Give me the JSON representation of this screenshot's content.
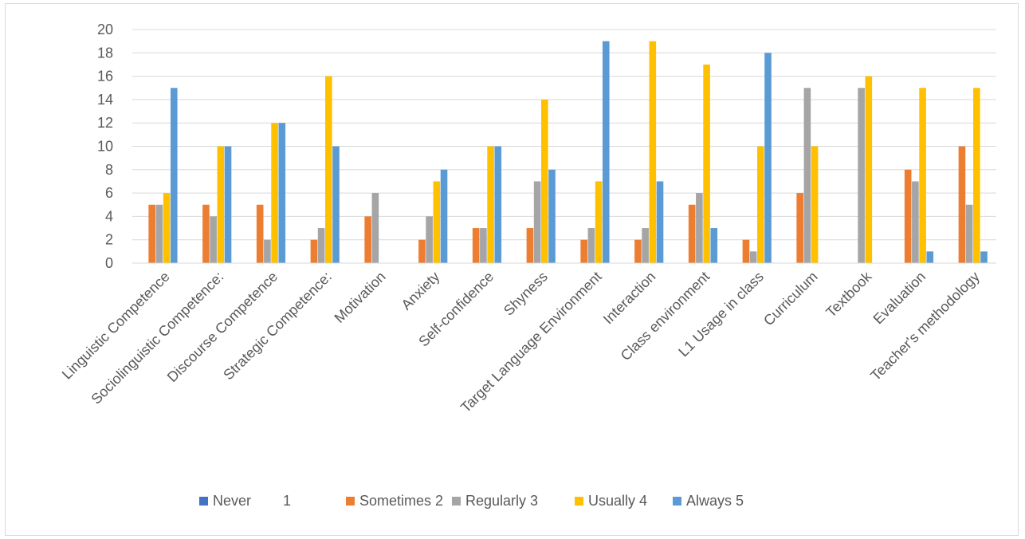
{
  "chart_data": {
    "type": "bar",
    "title": "",
    "xlabel": "",
    "ylabel": "",
    "ylim": [
      0,
      20
    ],
    "yticks": [
      0,
      2,
      4,
      6,
      8,
      10,
      12,
      14,
      16,
      18,
      20
    ],
    "grid": true,
    "legend_position": "bottom",
    "categories": [
      "Linguistic Competence",
      "Sociolinguistic Competence:",
      "Discourse Competence",
      "Strategic Competence:",
      "Motivation",
      "Anxiety",
      "Self-confidence",
      "Shyness",
      "Target Language Environment",
      "Interaction",
      "Class environment",
      "L1 Usage in class",
      "Curriculum",
      "Textbook",
      "Evaluation",
      "Teacher's methodology"
    ],
    "series": [
      {
        "name": "Never        1",
        "color": "#4472c4",
        "values": [
          0,
          0,
          0,
          0,
          0,
          0,
          0,
          0,
          0,
          0,
          0,
          0,
          0,
          0,
          0,
          0
        ]
      },
      {
        "name": "Sometimes 2",
        "color": "#ed7d31",
        "values": [
          5,
          5,
          5,
          2,
          4,
          2,
          3,
          3,
          2,
          2,
          5,
          2,
          6,
          0,
          8,
          10
        ]
      },
      {
        "name": "Regularly 3",
        "color": "#a5a5a5",
        "values": [
          5,
          4,
          2,
          3,
          6,
          4,
          3,
          7,
          3,
          3,
          6,
          1,
          15,
          15,
          7,
          5
        ]
      },
      {
        "name": "Usually 4",
        "color": "#ffc000",
        "values": [
          6,
          10,
          12,
          16,
          0,
          7,
          10,
          14,
          7,
          19,
          17,
          10,
          10,
          16,
          15,
          15
        ]
      },
      {
        "name": "Always 5",
        "color": "#5b9bd5",
        "values": [
          15,
          10,
          12,
          10,
          0,
          8,
          10,
          8,
          19,
          7,
          3,
          18,
          0,
          0,
          1,
          1
        ]
      }
    ]
  }
}
